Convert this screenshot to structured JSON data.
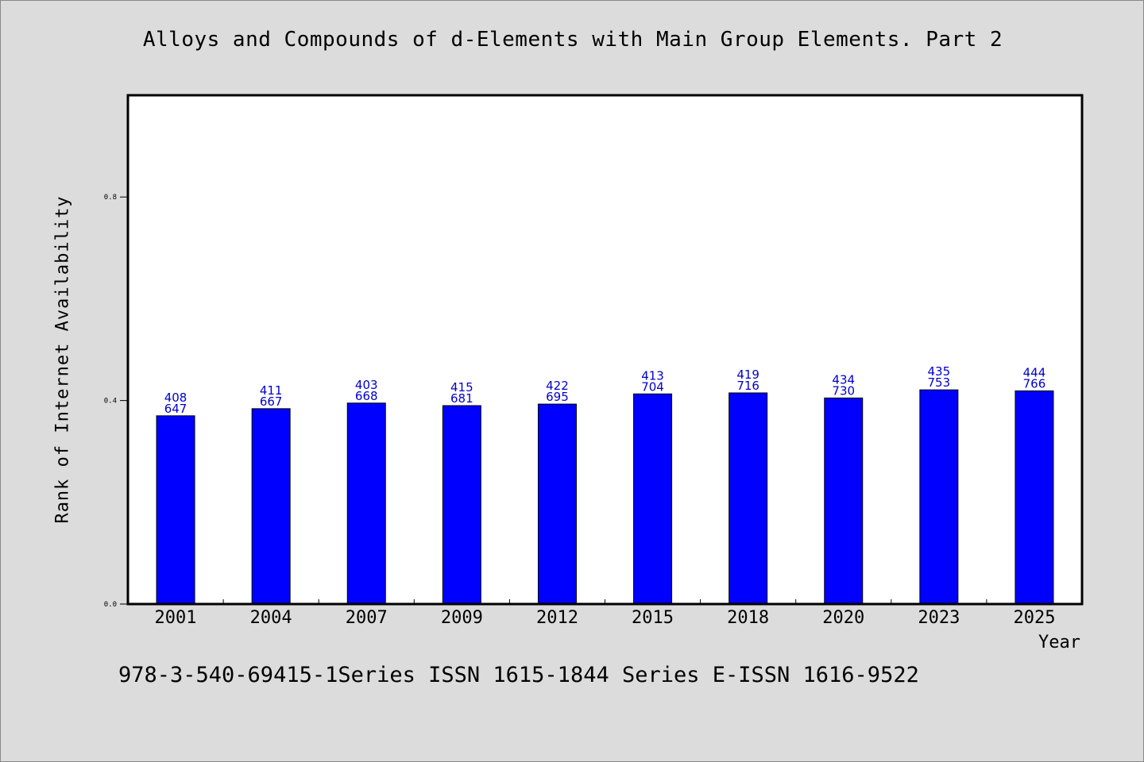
{
  "chart_data": {
    "type": "bar",
    "title": "Alloys and Compounds of d-Elements with Main Group Elements. Part 2",
    "xlabel": "Year",
    "ylabel": "Rank of Internet Availability",
    "footer": "978-3-540-69415-1Series ISSN 1615-1844 Series E-ISSN 1616-9522",
    "categories": [
      "2001",
      "2004",
      "2007",
      "2009",
      "2012",
      "2015",
      "2018",
      "2020",
      "2023",
      "2025"
    ],
    "values": [
      0.37,
      0.384,
      0.395,
      0.39,
      0.393,
      0.413,
      0.415,
      0.405,
      0.421,
      0.419
    ],
    "data_labels_top": [
      "408",
      "411",
      "403",
      "415",
      "422",
      "413",
      "419",
      "434",
      "435",
      "444"
    ],
    "data_labels_bottom": [
      "647",
      "667",
      "668",
      "681",
      "695",
      "704",
      "716",
      "730",
      "753",
      "766"
    ],
    "yticks": [
      0.0,
      0.4,
      0.8
    ],
    "ytick_labels": [
      "0.0",
      "0.4",
      "0.8"
    ],
    "ylim": [
      0,
      1.0
    ],
    "grid": false,
    "colors": {
      "bar": "#0000ff",
      "label": "#0000cc",
      "background": "#dcdcdc",
      "plot": "#ffffff"
    }
  }
}
